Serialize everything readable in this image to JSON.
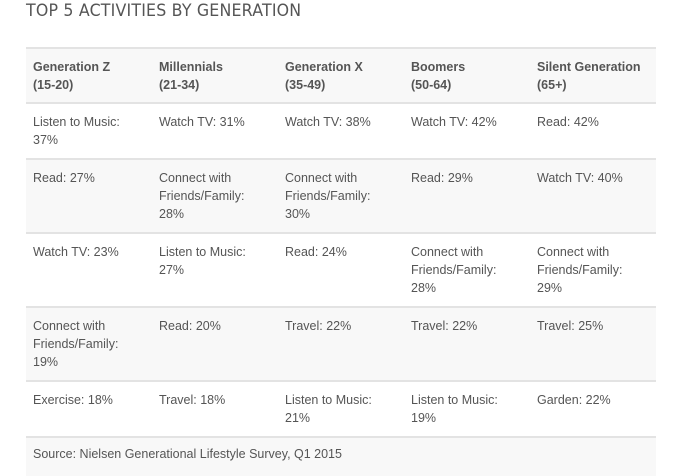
{
  "title": "TOP 5 ACTIVITIES BY GENERATION",
  "table": {
    "headers": [
      {
        "name": "Generation Z",
        "range": "(15-20)"
      },
      {
        "name": "Millennials",
        "range": "(21-34)"
      },
      {
        "name": "Generation X",
        "range": "(35-49)"
      },
      {
        "name": "Boomers",
        "range": "(50-64)"
      },
      {
        "name": "Silent Generation",
        "range": "(65+)"
      }
    ],
    "rows": [
      [
        "Listen to Music: 37%",
        "Watch TV: 31%",
        "Watch TV: 38%",
        "Watch TV: 42%",
        "Read: 42%"
      ],
      [
        "Read: 27%",
        "Connect with Friends/Family: 28%",
        "Connect with Friends/Family: 30%",
        "Read: 29%",
        "Watch TV: 40%"
      ],
      [
        "Watch TV: 23%",
        "Listen to Music: 27%",
        "Read: 24%",
        "Connect with Friends/Family: 28%",
        "Connect with Friends/Family: 29%"
      ],
      [
        "Connect with Friends/Family: 19%",
        "Read: 20%",
        "Travel: 22%",
        "Travel: 22%",
        "Travel: 25%"
      ],
      [
        "Exercise: 18%",
        "Travel: 18%",
        "Listen to Music: 21%",
        "Listen to Music: 19%",
        "Garden: 22%"
      ]
    ],
    "source": "Source: Nielsen Generational Lifestyle Survey, Q1 2015"
  }
}
